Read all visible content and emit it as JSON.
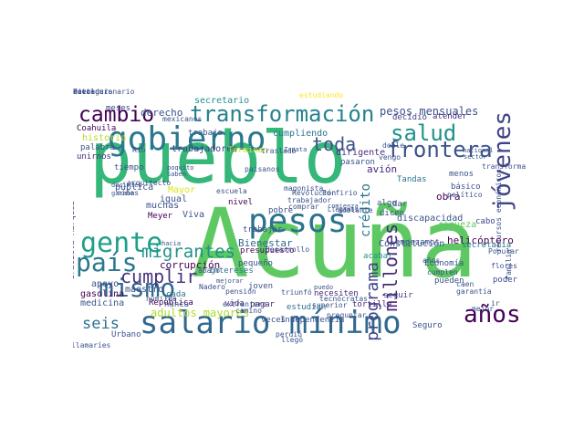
{
  "word_cloud": {
    "background": "#ffffff",
    "words": [
      {
        "text": "pueblo",
        "color": "#35b779",
        "vertical": false
      },
      {
        "text": "Acuña",
        "color": "#5ec962",
        "vertical": false
      },
      {
        "text": "salario mínimo",
        "color": "#31688e",
        "vertical": false
      },
      {
        "text": "gobierno",
        "color": "#2a788e",
        "vertical": false
      },
      {
        "text": "transformación",
        "color": "#26828e",
        "vertical": false
      },
      {
        "text": "pesos",
        "color": "#2c728e",
        "vertical": false
      },
      {
        "text": "jóvenes",
        "color": "#404387",
        "vertical": true
      },
      {
        "text": "salud",
        "color": "#21918c",
        "vertical": false
      },
      {
        "text": "frontera",
        "color": "#3b528b",
        "vertical": false
      },
      {
        "text": "gente",
        "color": "#1fa088",
        "vertical": false
      },
      {
        "text": "país",
        "color": "#2a788e",
        "vertical": false
      },
      {
        "text": "mismo",
        "color": "#31688e",
        "vertical": false
      },
      {
        "text": "cambio",
        "color": "#440154",
        "vertical": false
      },
      {
        "text": "toda",
        "color": "#3b528b",
        "vertical": false
      },
      {
        "text": "años",
        "color": "#440154",
        "vertical": false
      },
      {
        "text": "millones",
        "color": "#482878",
        "vertical": true
      },
      {
        "text": "programa",
        "color": "#414487",
        "vertical": true
      },
      {
        "text": "migrantes",
        "color": "#21918c",
        "vertical": false
      },
      {
        "text": "cumplir",
        "color": "#46327e",
        "vertical": false
      },
      {
        "text": "seis",
        "color": "#2c728e",
        "vertical": false
      },
      {
        "text": "adultos mayores",
        "color": "#addc30",
        "vertical": false
      },
      {
        "text": "derecho",
        "color": "#3b528b",
        "vertical": false
      },
      {
        "text": "secretario",
        "color": "#21918c",
        "vertical": false
      },
      {
        "text": "estudiando",
        "color": "#fde725",
        "vertical": false
      },
      {
        "text": "trabajadores",
        "color": "#404387",
        "vertical": false
      },
      {
        "text": "Terminan",
        "color": "#c2df23",
        "vertical": false
      },
      {
        "text": "pesos mensuales",
        "color": "#3b528b",
        "vertical": false
      },
      {
        "text": "atender",
        "color": "#472d7b",
        "vertical": false
      },
      {
        "text": "decidió",
        "color": "#414487",
        "vertical": false
      },
      {
        "text": "cumpliendo",
        "color": "#2a788e",
        "vertical": false
      },
      {
        "text": "crédito",
        "color": "#2a788e",
        "vertical": true
      },
      {
        "text": "Bienestar",
        "color": "#31688e",
        "vertical": false
      },
      {
        "text": "avión",
        "color": "#482878",
        "vertical": false
      },
      {
        "text": "dirigente",
        "color": "#46327e",
        "vertical": false
      },
      {
        "text": "pasaron",
        "color": "#3b528b",
        "vertical": false
      },
      {
        "text": "Tandas",
        "color": "#2c728e",
        "vertical": false
      },
      {
        "text": "obra",
        "color": "#440154",
        "vertical": false
      },
      {
        "text": "riqueza",
        "color": "#5ec962",
        "vertical": false
      },
      {
        "text": "cabo",
        "color": "#3e4989",
        "vertical": false
      },
      {
        "text": "helicóptero",
        "color": "#440154",
        "vertical": false
      },
      {
        "text": "discapacidad",
        "color": "#3b528b",
        "vertical": false
      },
      {
        "text": "Constitución",
        "color": "#3b528b",
        "vertical": false
      },
      {
        "text": "secretaria",
        "color": "#2a788e",
        "vertical": false
      },
      {
        "text": "presupuesto",
        "color": "#440154",
        "vertical": false
      },
      {
        "text": "intereses",
        "color": "#2c728e",
        "vertical": false
      },
      {
        "text": "necesiten",
        "color": "#482878",
        "vertical": false
      },
      {
        "text": "acabar",
        "color": "#21918c",
        "vertical": false
      },
      {
        "text": "Economía",
        "color": "#3b528b",
        "vertical": false
      },
      {
        "text": "corrupción",
        "color": "#440154",
        "vertical": false
      },
      {
        "text": "República",
        "color": "#440154",
        "vertical": false
      },
      {
        "text": "maestro",
        "color": "#3b528b",
        "vertical": false
      },
      {
        "text": "cada",
        "color": "#2c728e",
        "vertical": false
      },
      {
        "text": "nunca",
        "color": "#3b528b",
        "vertical": false
      },
      {
        "text": "apoyo",
        "color": "#3b528b",
        "vertical": false
      },
      {
        "text": "gasolina",
        "color": "#440154",
        "vertical": false
      },
      {
        "text": "medicina",
        "color": "#3b528b",
        "vertical": false
      },
      {
        "text": "pagar",
        "color": "#482878",
        "vertical": false
      },
      {
        "text": "joven",
        "color": "#3b528b",
        "vertical": false
      },
      {
        "text": "vida",
        "color": "#482878",
        "vertical": false
      },
      {
        "text": "estudian",
        "color": "#2c728e",
        "vertical": false
      },
      {
        "text": "tortilla",
        "color": "#482878",
        "vertical": false
      },
      {
        "text": "Seguro",
        "color": "#3b528b",
        "vertical": false
      },
      {
        "text": "seguir",
        "color": "#404387",
        "vertical": false
      },
      {
        "text": "Graciela Márquez",
        "color": "#46327e",
        "vertical": true
      },
      {
        "text": "recursos económicos",
        "color": "#3b528b",
        "vertical": true
      },
      {
        "text": "Saben cuánto",
        "color": "#46327e",
        "vertical": true
      },
      {
        "text": "familia",
        "color": "#3b528b",
        "vertical": true
      },
      {
        "text": "historia",
        "color": "#b5de2b",
        "vertical": false
      },
      {
        "text": "palabra",
        "color": "#3b528b",
        "vertical": false
      },
      {
        "text": "Coahuila",
        "color": "#440154",
        "vertical": false
      },
      {
        "text": "unirnos",
        "color": "#482878",
        "vertical": false
      },
      {
        "text": "meses",
        "color": "#414487",
        "vertical": false
      },
      {
        "text": "mexicanos",
        "color": "#3b528b",
        "vertical": false
      },
      {
        "text": "trabajo",
        "color": "#3b528b",
        "vertical": false
      },
      {
        "text": "nivel",
        "color": "#440154",
        "vertical": false
      },
      {
        "text": "Viva",
        "color": "#3b528b",
        "vertical": false
      },
      {
        "text": "Meyer",
        "color": "#440154",
        "vertical": false
      },
      {
        "text": "pobre",
        "color": "#3b528b",
        "vertical": false
      },
      {
        "text": "pequeño",
        "color": "#3b528b",
        "vertical": false
      },
      {
        "text": "pública",
        "color": "#3b528b",
        "vertical": false
      },
      {
        "text": "igual",
        "color": "#3b528b",
        "vertical": false
      },
      {
        "text": "muchas",
        "color": "#3b528b",
        "vertical": false
      },
      {
        "text": "Mayor",
        "color": "#dde318",
        "vertical": false
      },
      {
        "text": "Desarrollo",
        "color": "#3b528b",
        "vertical": false
      },
      {
        "text": "poder",
        "color": "#3b528b",
        "vertical": false
      },
      {
        "text": "veces",
        "color": "#3b528b",
        "vertical": false
      },
      {
        "text": "Independencia",
        "color": "#3b528b",
        "vertical": false
      },
      {
        "text": "preguntar",
        "color": "#3b528b",
        "vertical": false
      },
      {
        "text": "trabajar",
        "color": "#3b528b",
        "vertical": false
      },
      {
        "text": "empezamos",
        "color": "#3b528b",
        "vertical": false
      },
      {
        "text": "comienza",
        "color": "#3b528b",
        "vertical": false
      },
      {
        "text": "Llegamos",
        "color": "#3b528b",
        "vertical": false
      },
      {
        "text": "tiempo",
        "color": "#3b528b",
        "vertical": false
      },
      {
        "text": "Urbano",
        "color": "#3b528b",
        "vertical": false
      },
      {
        "text": "llamaríes",
        "color": "#3b528b",
        "vertical": false
      },
      {
        "text": "Popular",
        "color": "#3b528b",
        "vertical": false
      },
      {
        "text": "político",
        "color": "#3b528b",
        "vertical": false
      },
      {
        "text": "menos",
        "color": "#3b528b",
        "vertical": false
      },
      {
        "text": "básico",
        "color": "#3b528b",
        "vertical": false
      },
      {
        "text": "hacia",
        "color": "#3b528b",
        "vertical": false
      },
      {
        "text": "Zapata",
        "color": "#3b528b",
        "vertical": false
      },
      {
        "text": "paisanos",
        "color": "#3b528b",
        "vertical": false
      },
      {
        "text": "Porfirio",
        "color": "#3b528b",
        "vertical": false
      },
      {
        "text": "Revolución",
        "color": "#3b528b",
        "vertical": false
      },
      {
        "text": "trabajador",
        "color": "#3b528b",
        "vertical": false
      },
      {
        "text": "comprar",
        "color": "#3b528b",
        "vertical": false
      },
      {
        "text": "adelante",
        "color": "#3b528b",
        "vertical": false
      },
      {
        "text": "dicen",
        "color": "#3b528b",
        "vertical": false
      },
      {
        "text": "algo",
        "color": "#3b528b",
        "vertical": false
      },
      {
        "text": "dar",
        "color": "#3b528b",
        "vertical": false
      },
      {
        "text": "doble",
        "color": "#3b528b",
        "vertical": false
      },
      {
        "text": "vengo",
        "color": "#3b528b",
        "vertical": false
      },
      {
        "text": "transformaciones",
        "color": "#3b528b",
        "vertical": false
      },
      {
        "text": "nacional",
        "color": "#3b528b",
        "vertical": false
      },
      {
        "text": "sector",
        "color": "#3b528b",
        "vertical": false
      },
      {
        "text": "años",
        "color": "#3b528b",
        "vertical": false
      },
      {
        "text": "cumplen",
        "color": "#3b528b",
        "vertical": false
      },
      {
        "text": "pueden",
        "color": "#3b528b",
        "vertical": false
      },
      {
        "text": "caen",
        "color": "#3b528b",
        "vertical": false
      },
      {
        "text": "flores",
        "color": "#3b528b",
        "vertical": false
      },
      {
        "text": "garantía",
        "color": "#3b528b",
        "vertical": false
      },
      {
        "text": "mejor",
        "color": "#3b528b",
        "vertical": false
      },
      {
        "text": "ir",
        "color": "#3b528b",
        "vertical": false
      },
      {
        "text": "superior",
        "color": "#3b528b",
        "vertical": false
      },
      {
        "text": "tecnócratas",
        "color": "#3b528b",
        "vertical": false
      },
      {
        "text": "puedo",
        "color": "#3b528b",
        "vertical": false
      },
      {
        "text": "llegó",
        "color": "#3b528b",
        "vertical": false
      },
      {
        "text": "perdió",
        "color": "#3b528b",
        "vertical": false
      },
      {
        "text": "triunfó",
        "color": "#3b528b",
        "vertical": false
      },
      {
        "text": "pensión",
        "color": "#3b528b",
        "vertical": false
      },
      {
        "text": "camino",
        "color": "#3b528b",
        "vertical": false
      },
      {
        "text": "humilde",
        "color": "#3b528b",
        "vertical": false
      },
      {
        "text": "arquitecto",
        "color": "#3b528b",
        "vertical": false
      },
      {
        "text": "niñas",
        "color": "#3b528b",
        "vertical": false
      },
      {
        "text": "decirles",
        "color": "#3b528b",
        "vertical": false
      },
      {
        "text": "Saben",
        "color": "#3b528b",
        "vertical": false
      },
      {
        "text": "poquito",
        "color": "#3b528b",
        "vertical": false
      },
      {
        "text": "Río",
        "color": "#3b528b",
        "vertical": false
      },
      {
        "text": "trasladó",
        "color": "#3b528b",
        "vertical": false
      },
      {
        "text": "magonista",
        "color": "#3b528b",
        "vertical": false
      },
      {
        "text": "ganaba",
        "color": "#3b528b",
        "vertical": false
      },
      {
        "text": "extranjero",
        "color": "#3b528b",
        "vertical": false
      },
      {
        "text": "escuela",
        "color": "#3b528b",
        "vertical": false
      },
      {
        "text": "Nadero",
        "color": "#3b528b",
        "vertical": false
      },
      {
        "text": "mejorar",
        "color": "#3b528b",
        "vertical": false
      },
      {
        "text": "abajo",
        "color": "#3b528b",
        "vertical": false
      },
      {
        "text": "Buen",
        "color": "#3b528b",
        "vertical": false
      },
      {
        "text": "dictadura",
        "color": "#3b528b",
        "vertical": false
      },
      {
        "text": "revolucionario",
        "color": "#3b528b",
        "vertical": false
      },
      {
        "text": "entregar",
        "color": "#3b528b",
        "vertical": false
      }
    ]
  }
}
